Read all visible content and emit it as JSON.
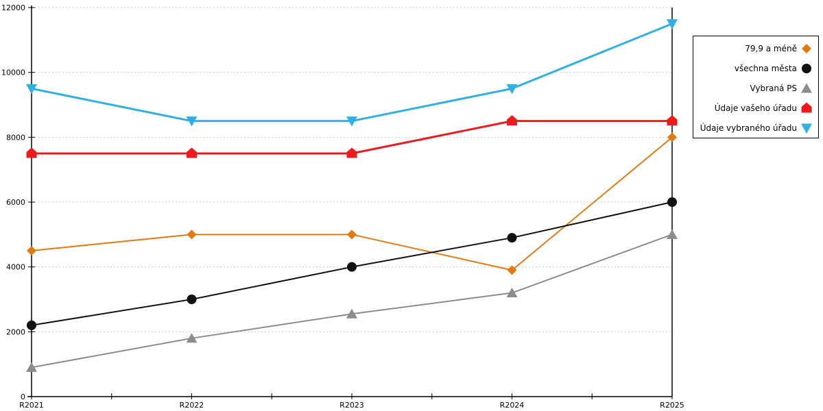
{
  "chart_data": {
    "type": "line",
    "categories": [
      "R2021",
      "R2022",
      "R2023",
      "R2024",
      "R2025"
    ],
    "series": [
      {
        "name": "79,9 a méně",
        "color": "#E27A12",
        "marker": "diamond",
        "line_width": 2,
        "values": [
          4500,
          5000,
          5000,
          3900,
          8000
        ]
      },
      {
        "name": "všechna města",
        "color": "#111111",
        "marker": "circle",
        "line_width": 2,
        "values": [
          2200,
          3000,
          4000,
          4900,
          6000
        ]
      },
      {
        "name": "Vybraná PS",
        "color": "#8C8C8C",
        "marker": "triangle-up",
        "line_width": 2,
        "values": [
          900,
          1800,
          2550,
          3200,
          5000
        ]
      },
      {
        "name": "Údaje vašeho úřadu",
        "color": "#EC1C1E",
        "marker": "pentagon",
        "line_width": 3,
        "values": [
          7500,
          7500,
          7500,
          8500,
          8500
        ]
      },
      {
        "name": "Údaje vybraného úřadu",
        "color": "#2FB0E4",
        "marker": "triangle-down",
        "line_width": 3,
        "values": [
          9500,
          8500,
          8500,
          9500,
          11500
        ]
      }
    ],
    "title": "",
    "xlabel": "",
    "ylabel": "",
    "ylim": [
      0,
      12000
    ],
    "ytick_step": 2000,
    "yticks": [
      "0",
      "2000",
      "4000",
      "6000",
      "8000",
      "10000",
      "12000"
    ],
    "grid": "horizontal-dotted",
    "legend_position": "right-outside",
    "colors": {
      "axis": "#000000",
      "grid": "#C9C9C9",
      "background": "#FFFFFF",
      "legend_border": "#000000"
    }
  }
}
